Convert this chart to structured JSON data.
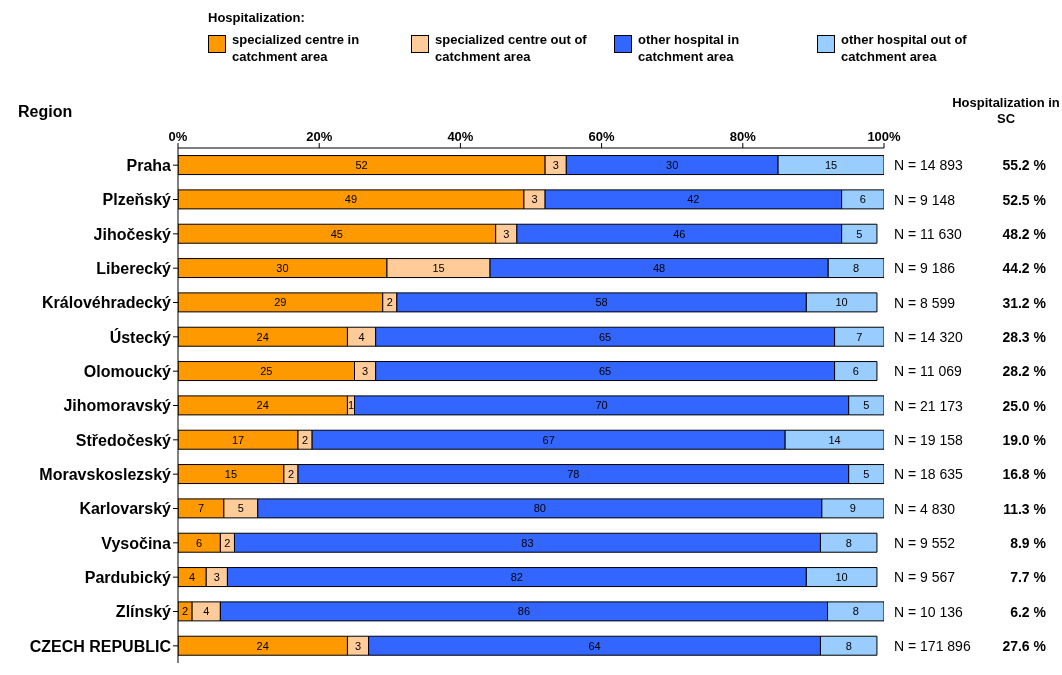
{
  "chart_data": {
    "type": "bar",
    "orientation": "horizontal",
    "stacked": true,
    "ylabel": "Region",
    "legend_title": "Hospitalization:",
    "legend": "top",
    "grid": false,
    "categories": [
      "Praha",
      "Plzeňský",
      "Jihočeský",
      "Liberecký",
      "Královéhradecký",
      "Ústecký",
      "Olomoucký",
      "Jihomoravský",
      "Středočeský",
      "Moravskoslezský",
      "Karlovarský",
      "Vysočina",
      "Pardubický",
      "Zlínský",
      "CZECH REPUBLIC"
    ],
    "xlim": [
      0,
      100
    ],
    "xticks": [
      {
        "value": 0,
        "label": "0%"
      },
      {
        "value": 20,
        "label": "20%"
      },
      {
        "value": 40,
        "label": "40%"
      },
      {
        "value": 60,
        "label": "60%"
      },
      {
        "value": 80,
        "label": "80%"
      },
      {
        "value": 100,
        "label": "100%"
      }
    ],
    "series": [
      {
        "name": "specialized centre in catchment area",
        "color": "#ff9900",
        "values": [
          52,
          49,
          45,
          29.6,
          29,
          24,
          25,
          24,
          17,
          15,
          6.5,
          6,
          4,
          2,
          24
        ],
        "value_labels": [
          "52",
          "49",
          "45",
          "30",
          "29",
          "24",
          "25",
          "24",
          "17",
          "15",
          "7",
          "6",
          "4",
          "2",
          "24"
        ]
      },
      {
        "name": "specialized centre out of catchment area",
        "color": "#ffcc99",
        "values": [
          3,
          3,
          3,
          14.6,
          2,
          4,
          3,
          1,
          2,
          2,
          4.8,
          2,
          3,
          4,
          3
        ],
        "value_labels": [
          "3",
          "3",
          "3",
          "15",
          "2",
          "4",
          "3",
          "1",
          "2",
          "2",
          "5",
          "2",
          "3",
          "4",
          "3"
        ]
      },
      {
        "name": "other hospital in catchment area",
        "color": "#3366ff",
        "values": [
          30,
          42,
          46,
          47.9,
          58,
          65,
          65,
          70,
          67,
          78,
          79.9,
          83,
          82,
          86,
          64
        ],
        "value_labels": [
          "30",
          "42",
          "46",
          "48",
          "58",
          "65",
          "65",
          "70",
          "67",
          "78",
          "80",
          "83",
          "82",
          "86",
          "64"
        ]
      },
      {
        "name": "other hospital out of catchment area",
        "color": "#99ccff",
        "values": [
          15,
          6,
          5,
          7.9,
          10,
          7,
          6,
          5,
          14,
          5,
          8.8,
          8,
          10,
          8,
          8
        ],
        "value_labels": [
          "15",
          "6",
          "5",
          "8",
          "10",
          "7",
          "6",
          "5",
          "14",
          "5",
          "9",
          "8",
          "10",
          "8",
          "8"
        ]
      }
    ],
    "annotations": [
      "Hospitalization in SC",
      "N = 14 893",
      "N = 9 148",
      "N = 11 630",
      "N = 9 186",
      "N = 8 599",
      "N = 14 320",
      "N = 11 069",
      "N = 21 173",
      "N = 19 158",
      "N = 18 635",
      "N = 4 830",
      "N = 9 552",
      "N = 9 567",
      "N = 10 136",
      "N = 171 896",
      "55.2 %",
      "52.5 %",
      "48.2 %",
      "44.2 %",
      "31.2 %",
      "28.3 %",
      "28.2 %",
      "25.0 %",
      "19.0 %",
      "16.8 %",
      "11.3 %",
      "8.9 %",
      "7.7 %",
      "6.2 %",
      "27.6 %"
    ]
  }
}
